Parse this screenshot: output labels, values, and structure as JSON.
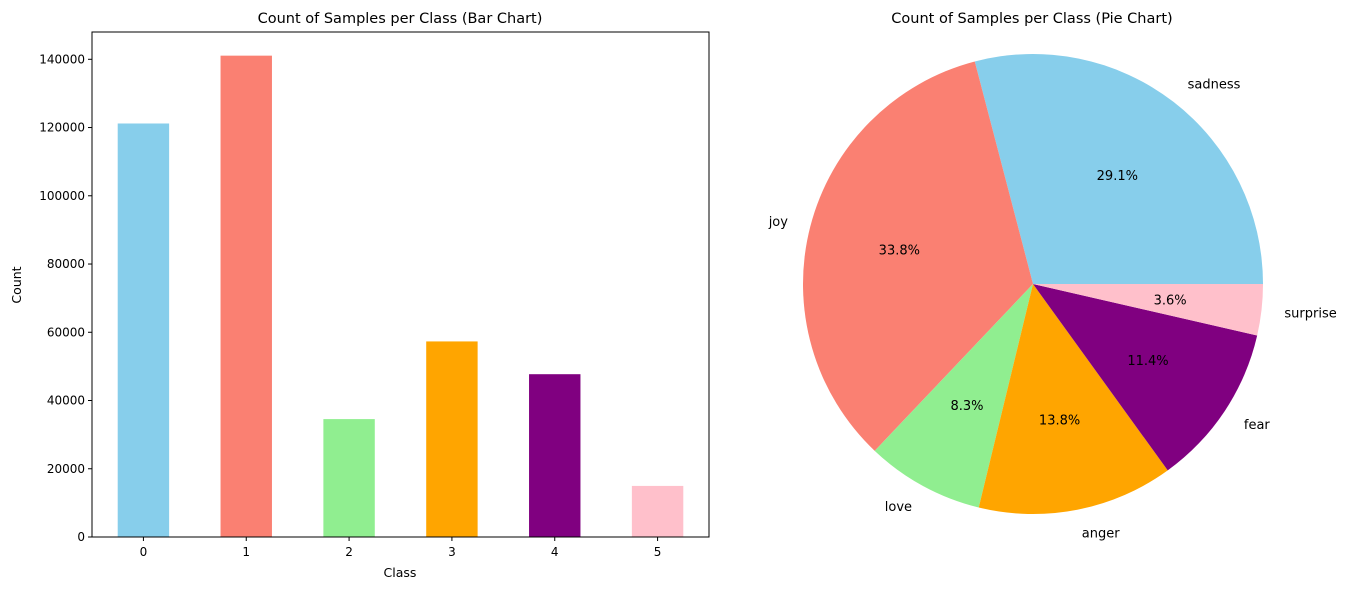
{
  "chart_data": [
    {
      "type": "bar",
      "title": "Count of Samples per Class (Bar Chart)",
      "xlabel": "Class",
      "ylabel": "Count",
      "categories": [
        "0",
        "1",
        "2",
        "3",
        "4",
        "5"
      ],
      "values": [
        121187,
        141067,
        34554,
        57317,
        47712,
        14972
      ],
      "colors": [
        "#87ceeb",
        "#fa8072",
        "#90ee90",
        "#ffa500",
        "#800080",
        "#ffc0cb"
      ],
      "ylim": [
        0,
        148000
      ],
      "yticks": [
        0,
        20000,
        40000,
        60000,
        80000,
        100000,
        120000,
        140000
      ],
      "ytick_labels": [
        "0",
        "20000",
        "40000",
        "60000",
        "80000",
        "100000",
        "120000",
        "140000"
      ],
      "grid": false
    },
    {
      "type": "pie",
      "title": "Count of Samples per Class (Pie Chart)",
      "labels": [
        "sadness",
        "joy",
        "love",
        "anger",
        "fear",
        "surprise"
      ],
      "values": [
        121187,
        141067,
        34554,
        57317,
        47712,
        14972
      ],
      "percent_labels": [
        "29.1%",
        "33.8%",
        "8.3%",
        "13.8%",
        "11.4%",
        "3.6%"
      ],
      "colors": [
        "#87ceeb",
        "#fa8072",
        "#90ee90",
        "#ffa500",
        "#800080",
        "#ffc0cb"
      ],
      "start_angle_deg": 0,
      "direction": "counterclockwise"
    }
  ]
}
